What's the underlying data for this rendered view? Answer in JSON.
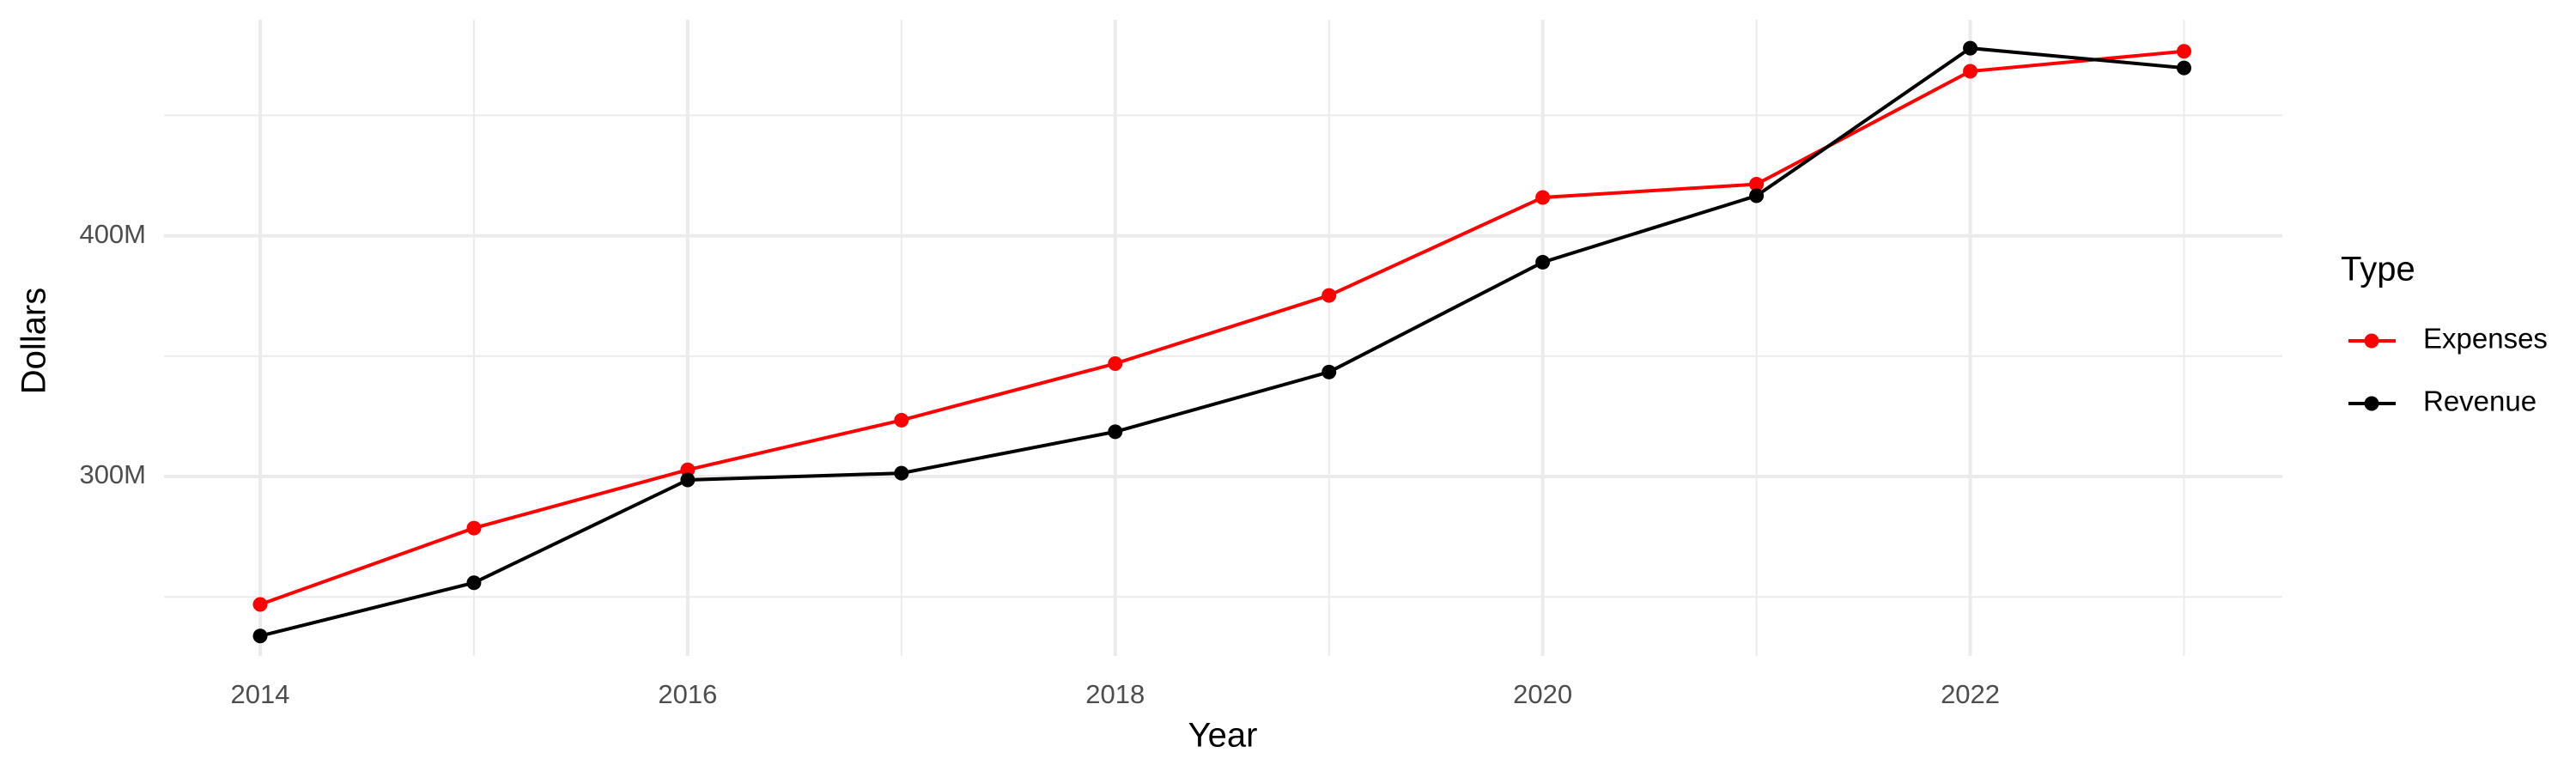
{
  "chart_data": {
    "type": "line",
    "xlabel": "Year",
    "ylabel": "Dollars",
    "legend_title": "Type",
    "legend": "right",
    "grid": true,
    "x": [
      2014,
      2015,
      2016,
      2017,
      2018,
      2019,
      2020,
      2021,
      2022,
      2023
    ],
    "series": [
      {
        "name": "Expenses",
        "color": "#ff0000",
        "values": [
          246900000,
          278600000,
          302800000,
          323400000,
          346900000,
          375200000,
          415900000,
          421400000,
          468300000,
          476600000
        ]
      },
      {
        "name": "Revenue",
        "color": "#000000",
        "values": [
          233800000,
          255900000,
          298600000,
          301400000,
          318600000,
          343400000,
          389000000,
          416600000,
          477900000,
          469700000
        ]
      }
    ],
    "xlim": [
      2013.55,
      2023.46
    ],
    "xticks": [
      2014,
      2016,
      2018,
      2020,
      2022
    ],
    "x_minor_ticks": [
      2015,
      2017,
      2019,
      2021,
      2023
    ],
    "ylim": [
      225500000,
      489700000
    ],
    "yticks": [
      {
        "value": 300000000,
        "label": "300M"
      },
      {
        "value": 400000000,
        "label": "400M"
      }
    ],
    "y_minor_ticks": [
      250000000,
      350000000,
      450000000
    ]
  }
}
